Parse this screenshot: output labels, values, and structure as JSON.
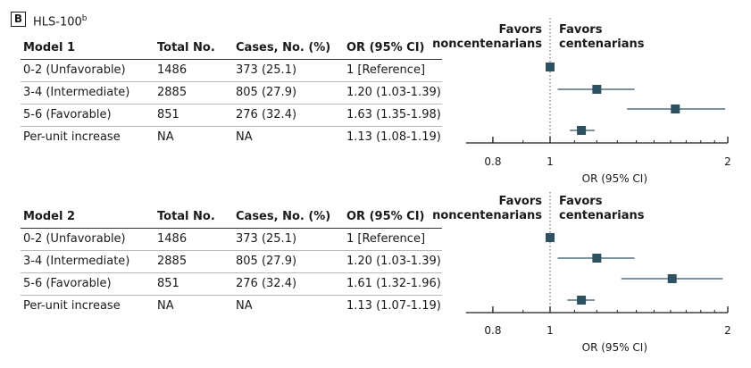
{
  "panel": {
    "tag": "B",
    "title": "HLS-100",
    "title_sup": "b"
  },
  "columns": {
    "total": "Total No.",
    "cases": "Cases, No. (%)",
    "or": "OR (95% CI)"
  },
  "favors": {
    "left_line1": "Favors",
    "left_line2": "noncentenarians",
    "right_line1": "Favors",
    "right_line2": "centenarians"
  },
  "chart_data": [
    {
      "type": "forest",
      "model": "Model 1",
      "xlabel": "OR (95% CI)",
      "xscale": "log",
      "xlim": [
        0.72,
        2.0
      ],
      "xticks": [
        0.8,
        1,
        2
      ],
      "xtick_labels": [
        "0.8",
        "1",
        "2"
      ],
      "reference_line": 1,
      "rows": [
        {
          "label": "0-2 (Unfavorable)",
          "total": "1486",
          "cases": "373 (25.1)",
          "or_text": "1 [Reference]",
          "or": 1.0,
          "lo": 1.0,
          "hi": 1.0
        },
        {
          "label": "3-4 (Intermediate)",
          "total": "2885",
          "cases": "805 (27.9)",
          "or_text": "1.20 (1.03-1.39)",
          "or": 1.2,
          "lo": 1.03,
          "hi": 1.39
        },
        {
          "label": "5-6 (Favorable)",
          "total": "851",
          "cases": "276 (32.4)",
          "or_text": "1.63 (1.35-1.98)",
          "or": 1.63,
          "lo": 1.35,
          "hi": 1.98
        },
        {
          "label": "Per-unit increase",
          "total": "NA",
          "cases": "NA",
          "or_text": "1.13 (1.08-1.19)",
          "or": 1.13,
          "lo": 1.08,
          "hi": 1.19
        }
      ]
    },
    {
      "type": "forest",
      "model": "Model 2",
      "xlabel": "OR (95% CI)",
      "xscale": "log",
      "xlim": [
        0.72,
        2.0
      ],
      "xticks": [
        0.8,
        1,
        2
      ],
      "xtick_labels": [
        "0.8",
        "1",
        "2"
      ],
      "reference_line": 1,
      "rows": [
        {
          "label": "0-2 (Unfavorable)",
          "total": "1486",
          "cases": "373 (25.1)",
          "or_text": "1 [Reference]",
          "or": 1.0,
          "lo": 1.0,
          "hi": 1.0
        },
        {
          "label": "3-4 (Intermediate)",
          "total": "2885",
          "cases": "805 (27.9)",
          "or_text": "1.20 (1.03-1.39)",
          "or": 1.2,
          "lo": 1.03,
          "hi": 1.39
        },
        {
          "label": "5-6 (Favorable)",
          "total": "851",
          "cases": "276 (32.4)",
          "or_text": "1.61 (1.32-1.96)",
          "or": 1.61,
          "lo": 1.32,
          "hi": 1.96
        },
        {
          "label": "Per-unit increase",
          "total": "NA",
          "cases": "NA",
          "or_text": "1.13 (1.07-1.19)",
          "or": 1.13,
          "lo": 1.07,
          "hi": 1.19
        }
      ]
    }
  ],
  "colors": {
    "marker": "#2d5161",
    "ci_line": "#2d5161",
    "axis": "#1a1a1a",
    "ref_line": "#555555"
  }
}
